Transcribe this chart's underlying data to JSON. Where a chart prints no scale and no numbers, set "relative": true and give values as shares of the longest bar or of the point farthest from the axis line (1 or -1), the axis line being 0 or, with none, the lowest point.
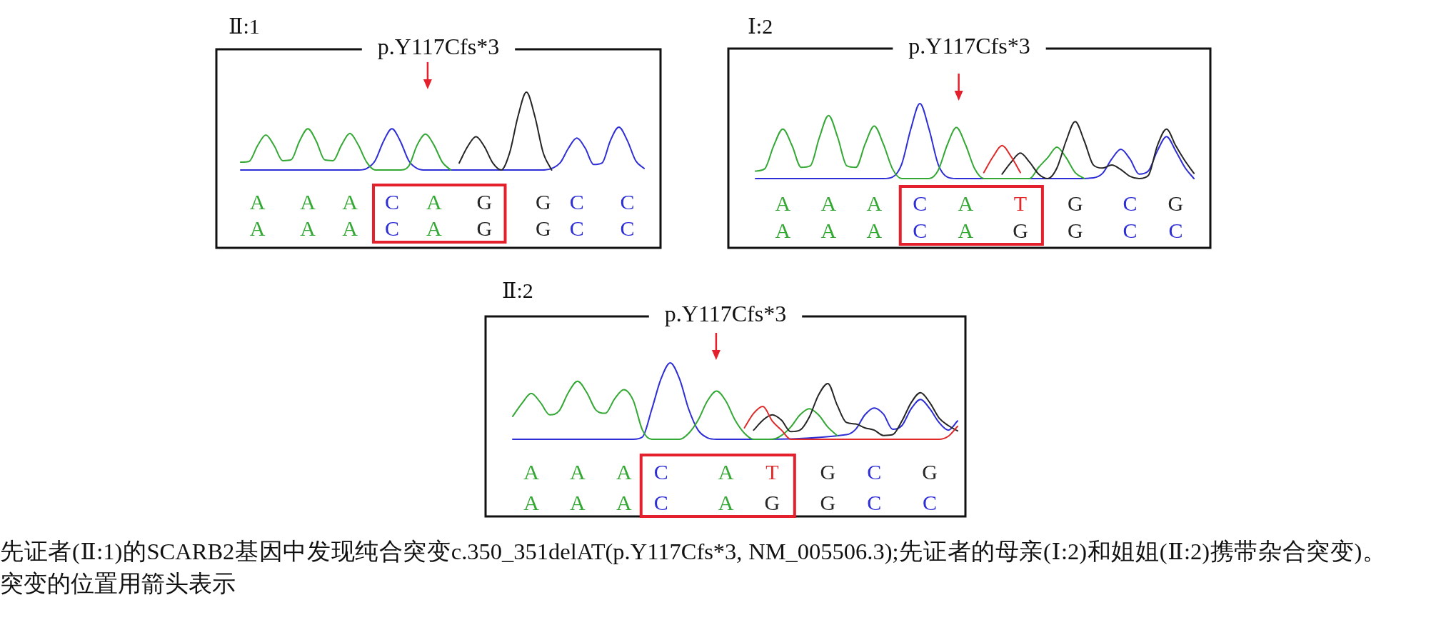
{
  "chart_data": [
    {
      "type": "line",
      "relative": true,
      "title": "Ⅱ:1",
      "subtitle": "p.Y117Cfs*3",
      "categories": [
        null,
        null,
        "A\nA",
        null,
        null,
        null,
        null,
        null,
        "A\nA",
        null,
        null,
        null,
        null,
        "A\nA",
        null,
        null,
        null,
        null,
        "C\nC",
        null,
        null,
        null,
        null,
        "A\nA",
        null,
        null,
        null,
        null,
        null,
        "G\nG",
        null,
        null,
        null,
        null,
        null,
        null,
        "G\nG",
        null,
        null,
        null,
        "C\nC",
        null,
        null,
        null,
        null,
        null,
        "C\nC",
        null,
        null
      ],
      "series": [
        {
          "color": "#2e2ed6",
          "values": [
            0,
            0,
            0,
            0,
            0,
            0,
            0,
            0,
            0,
            0,
            0,
            0,
            0,
            0,
            0,
            0.02,
            0.12,
            0.37,
            0.53,
            0.37,
            0.12,
            0.02,
            0,
            0,
            0,
            null,
            0,
            0,
            0,
            0,
            0,
            null,
            0,
            0,
            0,
            0,
            0,
            null,
            0.09,
            0.28,
            0.41,
            0.28,
            0.07,
            0.09,
            0.38,
            0.55,
            0.38,
            0.12,
            0.02
          ]
        },
        {
          "color": "#34a834",
          "values": [
            0.1,
            0.11,
            0.31,
            0.45,
            0.31,
            0.12,
            0.13,
            0.37,
            0.53,
            0.37,
            0.13,
            0.12,
            0.32,
            0.47,
            0.32,
            0.1,
            0,
            0,
            0,
            0,
            0.05,
            0.32,
            0.46,
            0.32,
            0.1,
            0,
            null,
            null,
            null,
            null,
            null,
            null,
            null,
            null,
            null,
            null,
            null,
            null,
            null,
            null,
            null,
            null,
            null,
            null,
            null,
            null,
            null,
            null,
            null
          ]
        },
        {
          "color": "#262626",
          "values": [
            null,
            null,
            null,
            null,
            null,
            null,
            null,
            null,
            null,
            null,
            null,
            null,
            null,
            null,
            null,
            null,
            null,
            null,
            null,
            null,
            null,
            null,
            null,
            null,
            null,
            null,
            0.09,
            0.3,
            0.43,
            0.3,
            0.09,
            0,
            0.22,
            0.69,
            1,
            0.69,
            0.22,
            0,
            null,
            null,
            null,
            null,
            null,
            null,
            null,
            null,
            null,
            null,
            null
          ]
        }
      ]
    },
    {
      "type": "line",
      "relative": true,
      "title": "Ⅰ:2",
      "subtitle": "p.Y117Cfs*3",
      "categories": [
        null,
        null,
        null,
        "A\nA",
        null,
        null,
        null,
        null,
        "A\nA",
        null,
        null,
        null,
        null,
        "A\nA",
        null,
        null,
        null,
        null,
        "C\nC",
        null,
        null,
        null,
        null,
        "A\nA",
        null,
        null,
        null,
        null,
        null,
        "T\nG",
        null,
        null,
        null,
        null,
        null,
        "G\nG",
        null,
        null,
        null,
        null,
        null,
        "C\nC",
        null,
        null,
        null,
        null,
        "G\nC",
        null,
        null
      ],
      "series": [
        {
          "color": "#2e2ed6",
          "values": [
            0,
            0,
            0,
            0,
            0,
            0,
            0,
            0,
            0,
            0,
            0,
            0,
            0,
            0,
            0,
            0.02,
            0.19,
            0.66,
            1,
            0.66,
            0.19,
            0.02,
            0,
            0,
            0,
            null,
            null,
            null,
            null,
            null,
            null,
            null,
            null,
            0,
            0,
            0,
            null,
            0.01,
            0.07,
            0.26,
            0.39,
            0.26,
            0.06,
            0.1,
            0.37,
            0.56,
            0.37,
            0.15,
            0
          ]
        },
        {
          "color": "#34a834",
          "values": [
            0.1,
            0.13,
            0.44,
            0.66,
            0.44,
            0.15,
            0.17,
            0.55,
            0.84,
            0.55,
            0.17,
            0.15,
            0.46,
            0.7,
            0.46,
            0.13,
            0,
            0,
            0,
            0,
            0.11,
            0.45,
            0.68,
            0.45,
            0.13,
            0,
            0,
            0,
            0,
            0,
            0,
            0.15,
            0.28,
            0.42,
            0.28,
            0.08,
            0,
            null,
            null,
            null,
            null,
            null,
            null,
            null,
            null,
            null,
            null,
            null,
            null
          ]
        },
        {
          "color": "#262626",
          "values": [
            null,
            null,
            null,
            null,
            null,
            null,
            null,
            null,
            null,
            null,
            null,
            null,
            null,
            null,
            null,
            null,
            null,
            null,
            null,
            null,
            null,
            null,
            null,
            null,
            null,
            null,
            null,
            0.06,
            0.22,
            0.34,
            0.22,
            0.06,
            0,
            0.14,
            0.5,
            0.76,
            0.5,
            0.18,
            0.14,
            0.18,
            0.12,
            0.03,
            0,
            0.04,
            0.44,
            0.66,
            0.44,
            0.24,
            0.07
          ]
        },
        {
          "color": "#e02a2a",
          "values": [
            null,
            null,
            null,
            null,
            null,
            null,
            null,
            null,
            null,
            null,
            null,
            null,
            null,
            null,
            null,
            null,
            null,
            null,
            null,
            null,
            null,
            null,
            null,
            null,
            null,
            0.08,
            0.29,
            0.44,
            0.29,
            0.08,
            null,
            null,
            null,
            null,
            null,
            null,
            null,
            null,
            null,
            null,
            null,
            null,
            null,
            null,
            null,
            null,
            null,
            null,
            null
          ]
        }
      ]
    },
    {
      "type": "line",
      "relative": true,
      "title": "Ⅱ:2",
      "subtitle": "p.Y117Cfs*3",
      "categories": [
        null,
        null,
        "A\nA",
        null,
        null,
        null,
        null,
        "A\nA",
        null,
        null,
        null,
        null,
        "A\nA",
        null,
        null,
        null,
        "C\nC",
        null,
        null,
        null,
        null,
        null,
        null,
        "A\nA",
        null,
        null,
        null,
        null,
        "T\nG",
        null,
        null,
        null,
        null,
        null,
        "G\nG",
        null,
        null,
        null,
        null,
        "C\nC",
        null,
        null,
        null,
        null,
        null,
        "G\nC",
        null,
        null,
        null
      ],
      "series": [
        {
          "color": "#2e2ed6",
          "values": [
            0,
            0,
            0,
            0,
            0,
            0,
            0,
            0,
            0,
            0,
            0,
            0,
            0,
            0,
            0.03,
            0.39,
            0.79,
            1,
            0.79,
            0.39,
            0.12,
            0.02,
            0,
            0,
            0,
            0,
            null,
            null,
            null,
            null,
            null,
            null,
            null,
            null,
            null,
            null,
            0.06,
            0.13,
            0.32,
            0.41,
            0.33,
            0.13,
            0.18,
            0.4,
            0.52,
            0.4,
            0.22,
            0.12,
            0.24
          ]
        },
        {
          "color": "#34a834",
          "values": [
            0.3,
            0.47,
            0.6,
            0.48,
            0.32,
            0.37,
            0.61,
            0.76,
            0.61,
            0.38,
            0.34,
            0.53,
            0.65,
            0.51,
            0.12,
            0,
            0,
            0,
            0,
            0.08,
            0.25,
            0.5,
            0.63,
            0.5,
            0.25,
            0.08,
            0,
            0,
            0,
            0.05,
            0.16,
            0.32,
            0.4,
            0.32,
            0.16,
            0.05,
            null,
            null,
            null,
            null,
            null,
            null,
            null,
            null,
            null,
            null,
            null,
            null,
            null
          ]
        },
        {
          "color": "#262626",
          "values": [
            null,
            null,
            null,
            null,
            null,
            null,
            null,
            null,
            null,
            null,
            null,
            null,
            null,
            null,
            null,
            null,
            null,
            null,
            null,
            null,
            null,
            null,
            null,
            null,
            null,
            null,
            0.12,
            0.25,
            0.32,
            0.25,
            0.1,
            0.12,
            0.29,
            0.58,
            0.73,
            0.45,
            0.22,
            0.2,
            0.15,
            0.12,
            0.05,
            0.06,
            0.24,
            0.48,
            0.61,
            0.48,
            0.28,
            0.18,
            0.11
          ]
        },
        {
          "color": "#e02a2a",
          "values": [
            null,
            null,
            null,
            null,
            null,
            null,
            null,
            null,
            null,
            null,
            null,
            null,
            null,
            null,
            null,
            null,
            null,
            null,
            null,
            null,
            null,
            null,
            null,
            null,
            null,
            0.15,
            0.34,
            0.43,
            0.24,
            0.12,
            0,
            0,
            0,
            0,
            0,
            0,
            0,
            0,
            0,
            0,
            0,
            0,
            0,
            0,
            0,
            0,
            0,
            0.04,
            0.17
          ]
        }
      ],
      "annotations": [
        "先证者(Ⅱ:1)的SCARB2基因中发现纯合突变c.350_351delAT(p.Y117Cfs*3, NM_005506.3);先证者的母亲(Ⅰ:2)和姐姐(Ⅱ:2)携带杂合突变)。突变的位置用箭头表示"
      ]
    }
  ]
}
